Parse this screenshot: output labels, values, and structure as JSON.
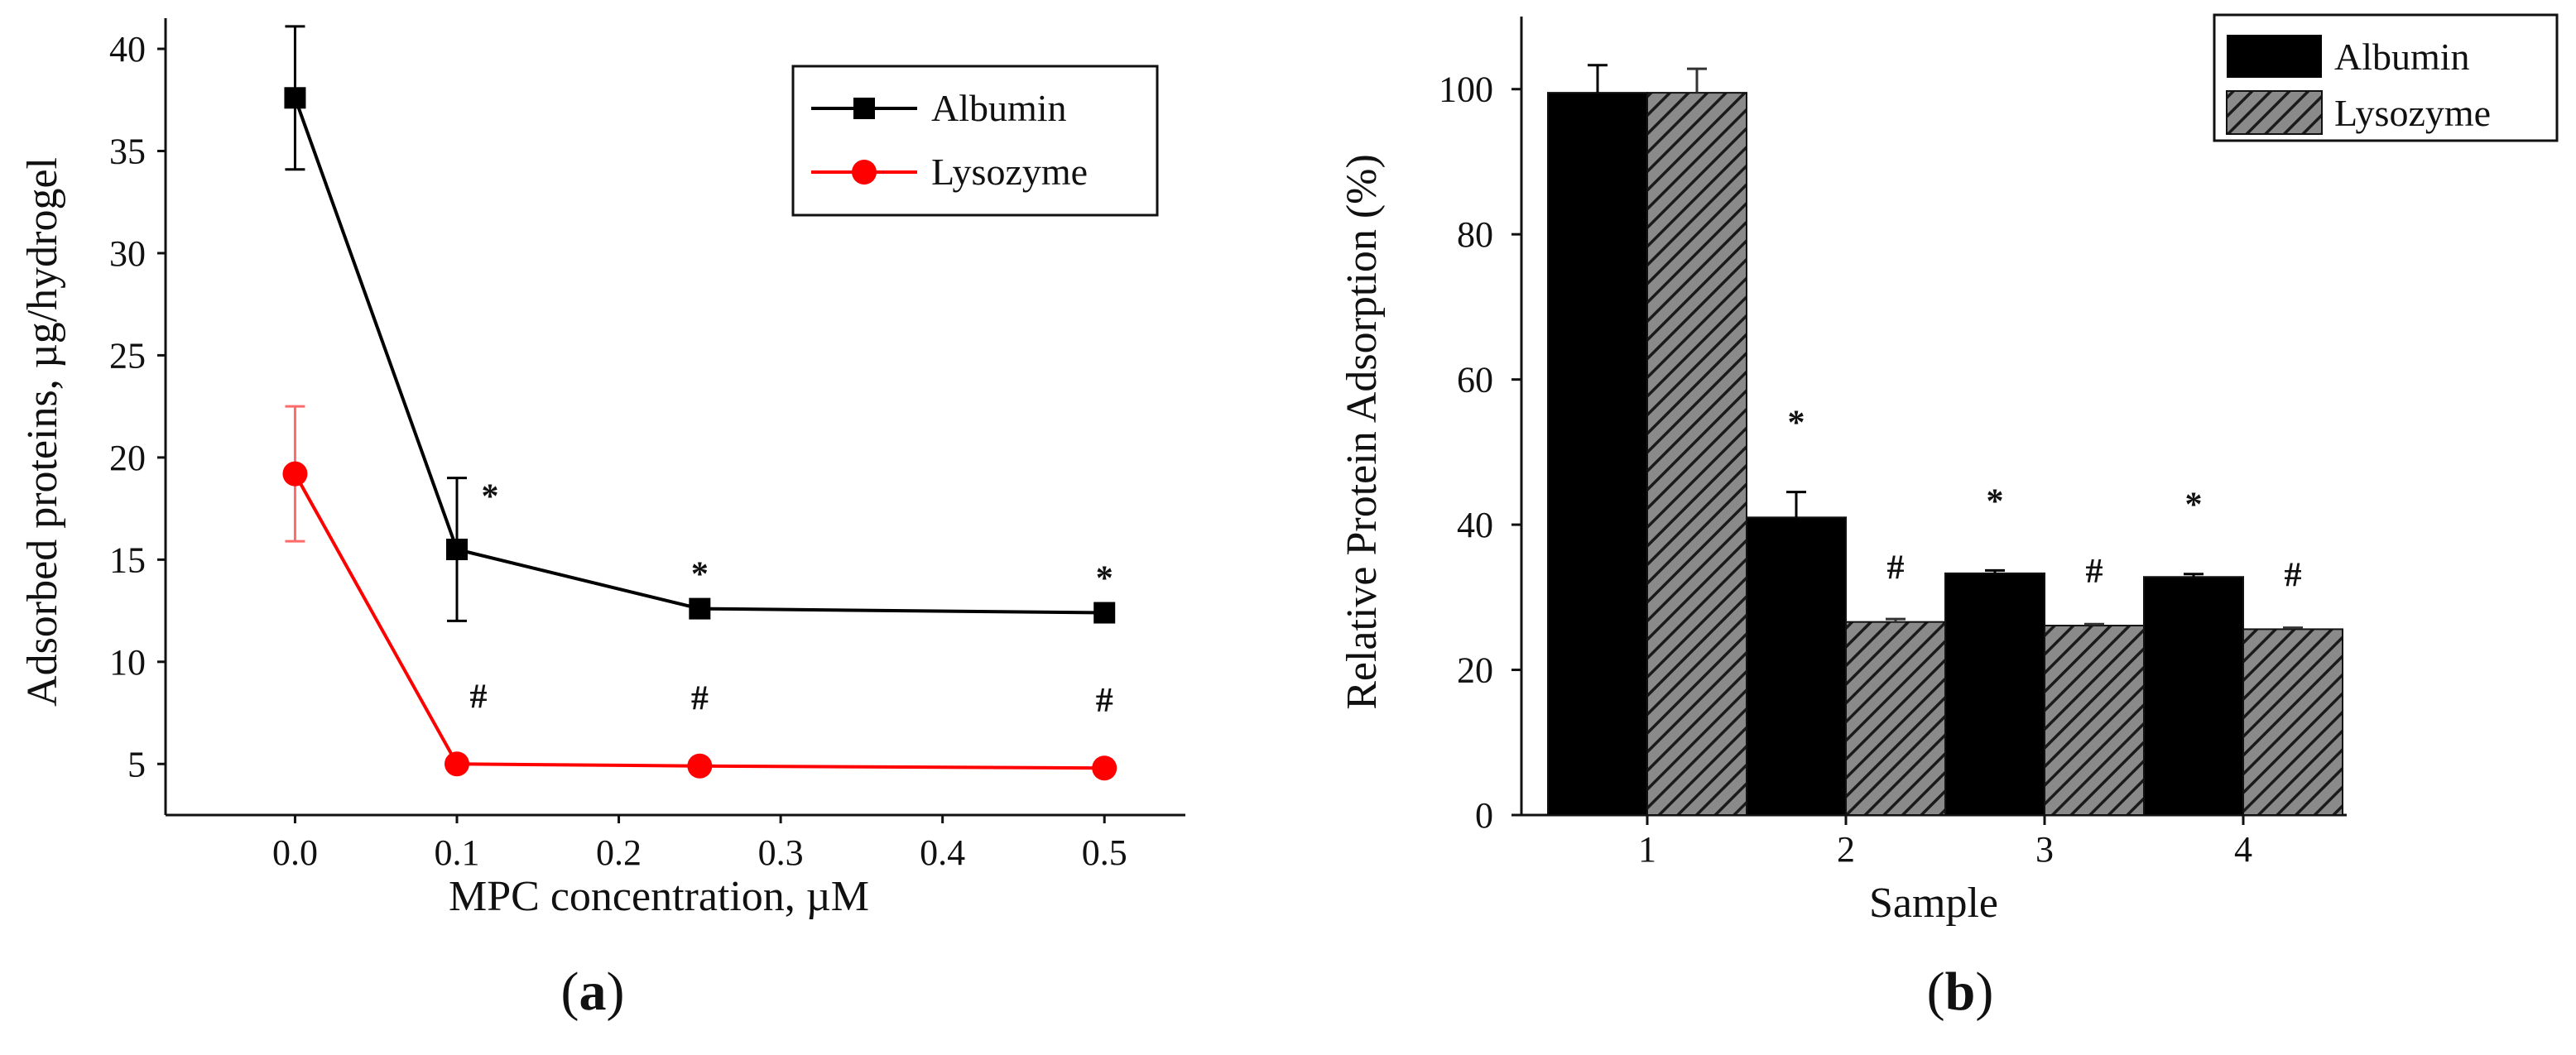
{
  "chart_data": [
    {
      "panel_label": "a",
      "type": "line",
      "xlabel": "MPC concentration, µM",
      "ylabel": "Adsorbed proteins, µg/hydrogel",
      "xlim": [
        -0.08,
        0.55
      ],
      "ylim": [
        2.5,
        41.5
      ],
      "x_ticks": [
        0.0,
        0.1,
        0.2,
        0.3,
        0.4,
        0.5
      ],
      "x_tick_labels": [
        "0.0",
        "0.1",
        "0.2",
        "0.3",
        "0.4",
        "0.5"
      ],
      "y_ticks": [
        5,
        10,
        15,
        20,
        25,
        30,
        35,
        40
      ],
      "y_tick_labels": [
        "5",
        "10",
        "15",
        "20",
        "25",
        "30",
        "35",
        "40"
      ],
      "legend_position": "top-right",
      "series": [
        {
          "name": "Albumin",
          "color": "#000000",
          "marker": "square",
          "x": [
            0.0,
            0.1,
            0.25,
            0.5
          ],
          "values": [
            37.6,
            15.5,
            12.6,
            12.4
          ],
          "error": [
            3.5,
            3.5,
            0.3,
            0.3
          ],
          "annotations": [
            "",
            "*",
            "*",
            "*"
          ]
        },
        {
          "name": "Lysozyme",
          "color": "#ff0000",
          "marker": "circle",
          "x": [
            0.0,
            0.1,
            0.25,
            0.5
          ],
          "values": [
            19.2,
            5.0,
            4.9,
            4.8
          ],
          "error": [
            3.3,
            0.0,
            0.0,
            0.0
          ],
          "annotations": [
            "",
            "#",
            "#",
            "#"
          ]
        }
      ]
    },
    {
      "panel_label": "b",
      "type": "bar",
      "xlabel": "Sample",
      "ylabel": "Relative Protein Adsorption (%)",
      "ylim": [
        0,
        110
      ],
      "categories": [
        "1",
        "2",
        "3",
        "4"
      ],
      "y_ticks": [
        0,
        20,
        40,
        60,
        80,
        100
      ],
      "y_tick_labels": [
        "0",
        "20",
        "40",
        "60",
        "80",
        "100"
      ],
      "legend_position": "top-right",
      "series": [
        {
          "name": "Albumin",
          "color": "#000000",
          "fill": "solid",
          "values": [
            99.5,
            41,
            33.3,
            32.8
          ],
          "error": [
            3.8,
            3.5,
            0.4,
            0.4
          ],
          "annotations": [
            "",
            "*",
            "*",
            "*"
          ]
        },
        {
          "name": "Lysozyme",
          "color": "#555555",
          "fill": "hatched",
          "values": [
            99.5,
            26.6,
            26.1,
            25.6
          ],
          "error": [
            3.3,
            0.4,
            0.2,
            0.2
          ],
          "annotations": [
            "",
            "#",
            "#",
            "#"
          ]
        }
      ]
    }
  ]
}
